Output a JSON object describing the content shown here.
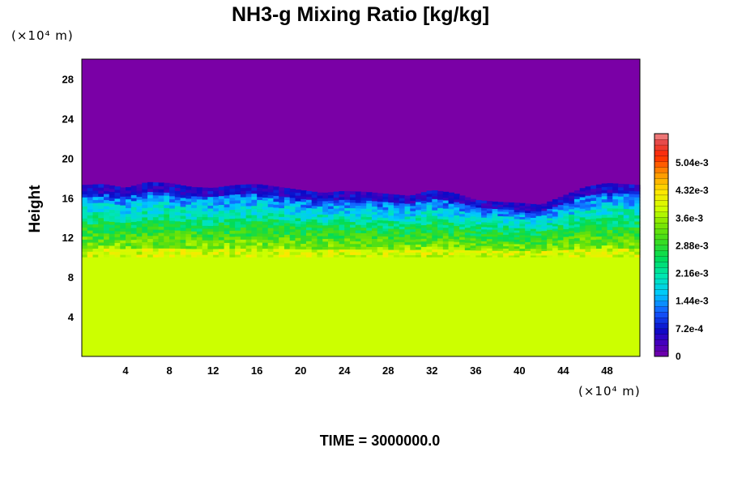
{
  "chart_data": {
    "type": "heatmap",
    "title": "NH3-g Mixing Ratio [kg/kg]",
    "ylabel": "Height",
    "x_unit_label": "(×10⁴ m)",
    "y_unit_label": "(×10⁴ m)",
    "footer": "TIME = 3000000.0",
    "xlim": [
      0,
      51
    ],
    "ylim": [
      0,
      30
    ],
    "x_ticks": [
      "4",
      "8",
      "12",
      "16",
      "20",
      "24",
      "28",
      "32",
      "36",
      "40",
      "44",
      "48"
    ],
    "y_ticks": [
      "4",
      "8",
      "12",
      "16",
      "20",
      "24",
      "28"
    ],
    "colorbar_ticks": [
      "0",
      "7.2e-4",
      "1.44e-3",
      "2.16e-3",
      "2.88e-3",
      "3.6e-3",
      "4.32e-3",
      "5.04e-3"
    ],
    "colorbar_range": [
      0,
      0.0058
    ],
    "field": {
      "lower_layer_value": 0.0037,
      "lower_layer_top": 10,
      "upper_layer_value": 0,
      "cloud_top_profile": {
        "x": [
          0,
          2,
          4,
          6,
          8,
          10,
          12,
          14,
          16,
          18,
          20,
          22,
          24,
          26,
          28,
          30,
          32,
          34,
          36,
          38,
          40,
          42,
          44,
          46,
          48,
          51
        ],
        "top": [
          17.3,
          17.4,
          17.0,
          17.6,
          17.5,
          17.1,
          17.0,
          17.3,
          17.4,
          17.1,
          16.8,
          16.5,
          16.7,
          16.6,
          16.4,
          16.2,
          16.8,
          16.5,
          15.8,
          15.6,
          15.5,
          15.3,
          16.2,
          17.1,
          17.5,
          17.3
        ]
      }
    },
    "colors": {
      "background": "#7a00a6",
      "lower": "#ccff00"
    }
  }
}
